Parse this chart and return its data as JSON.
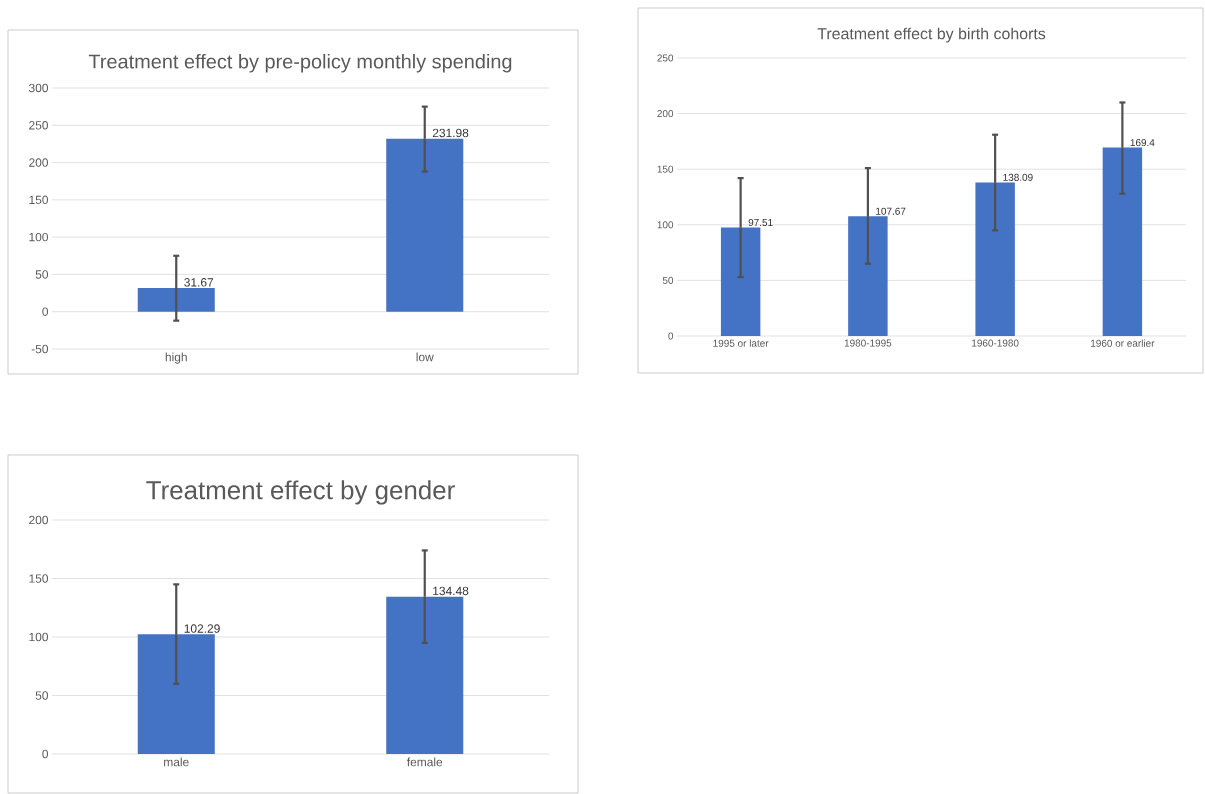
{
  "chart_data": [
    {
      "type": "bar",
      "title": "Treatment effect by pre-policy monthly spending",
      "categories": [
        "high",
        "low"
      ],
      "values": [
        31.67,
        231.98
      ],
      "color": "#4472c4",
      "errors": [
        [
          -12,
          75
        ],
        [
          188,
          275
        ]
      ],
      "ylim": [
        -50,
        300
      ],
      "yticks": [
        -50,
        0,
        50,
        100,
        150,
        200,
        250,
        300
      ],
      "grid": "y",
      "data_labels": true
    },
    {
      "type": "bar",
      "title": "Treatment effect by birth cohorts",
      "categories": [
        "1995 or later",
        "1980-1995",
        "1960-1980",
        "1960 or earlier"
      ],
      "values": [
        97.51,
        107.67,
        138.09,
        169.4
      ],
      "color": "#4472c4",
      "errors": [
        [
          53,
          142
        ],
        [
          65,
          151
        ],
        [
          95,
          181
        ],
        [
          128,
          210
        ]
      ],
      "ylim": [
        0,
        250
      ],
      "yticks": [
        0,
        50,
        100,
        150,
        200,
        250
      ],
      "grid": "y",
      "data_labels": true
    },
    {
      "type": "bar",
      "title": "Treatment effect by gender",
      "categories": [
        "male",
        "female"
      ],
      "values": [
        102.29,
        134.48
      ],
      "color": "#4472c4",
      "errors": [
        [
          60,
          145
        ],
        [
          95,
          174
        ]
      ],
      "ylim": [
        0,
        200
      ],
      "yticks": [
        0,
        50,
        100,
        150,
        200
      ],
      "grid": "y",
      "data_labels": true
    }
  ]
}
